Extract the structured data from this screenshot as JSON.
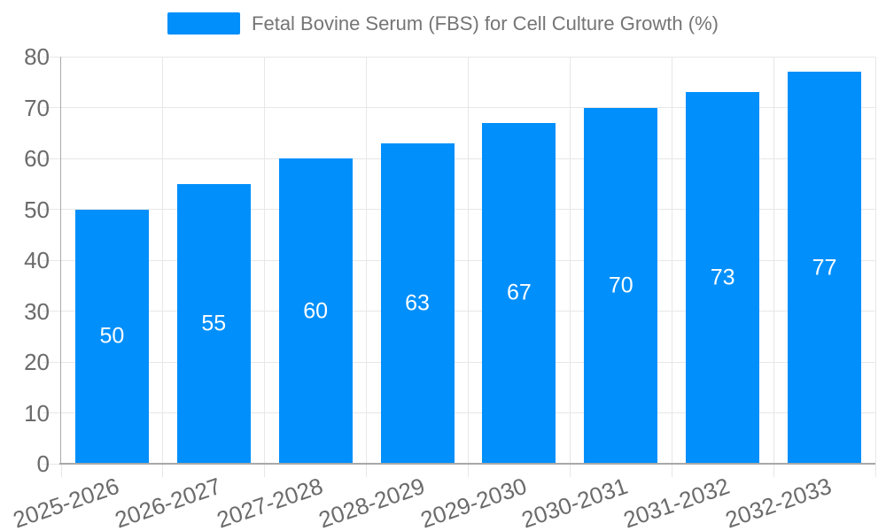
{
  "chart_data": {
    "type": "bar",
    "title": "Fetal Bovine Serum (FBS) for Cell Culture Growth (%)",
    "series": [
      {
        "name": "Fetal Bovine Serum (FBS) for Cell Culture Growth (%)",
        "values": [
          50,
          55,
          60,
          63,
          67,
          70,
          73,
          77
        ]
      }
    ],
    "categories": [
      "2025-2026",
      "2026-2027",
      "2027-2028",
      "2028-2029",
      "2029-2030",
      "2030-2031",
      "2031-2032",
      "2032-2033"
    ],
    "values": [
      50,
      55,
      60,
      63,
      67,
      70,
      73,
      77
    ],
    "data_labels": [
      "50",
      "55",
      "60",
      "63",
      "67",
      "70",
      "73",
      "77"
    ],
    "xlabel": "",
    "ylabel": "",
    "ylim": [
      0,
      80
    ],
    "yticks": [
      "0",
      "10",
      "20",
      "30",
      "40",
      "50",
      "60",
      "70",
      "80"
    ],
    "grid": true,
    "legend_position": "top",
    "colors": {
      "bar": "#008FFB",
      "bar_label": "#FFFFFF",
      "axis_text": "#6B6B6B",
      "legend_text": "#757575",
      "gridline": "#E7E7E7",
      "axis_line_y": "#ABABAB",
      "axis_line_x": "#A8A8A8"
    }
  }
}
